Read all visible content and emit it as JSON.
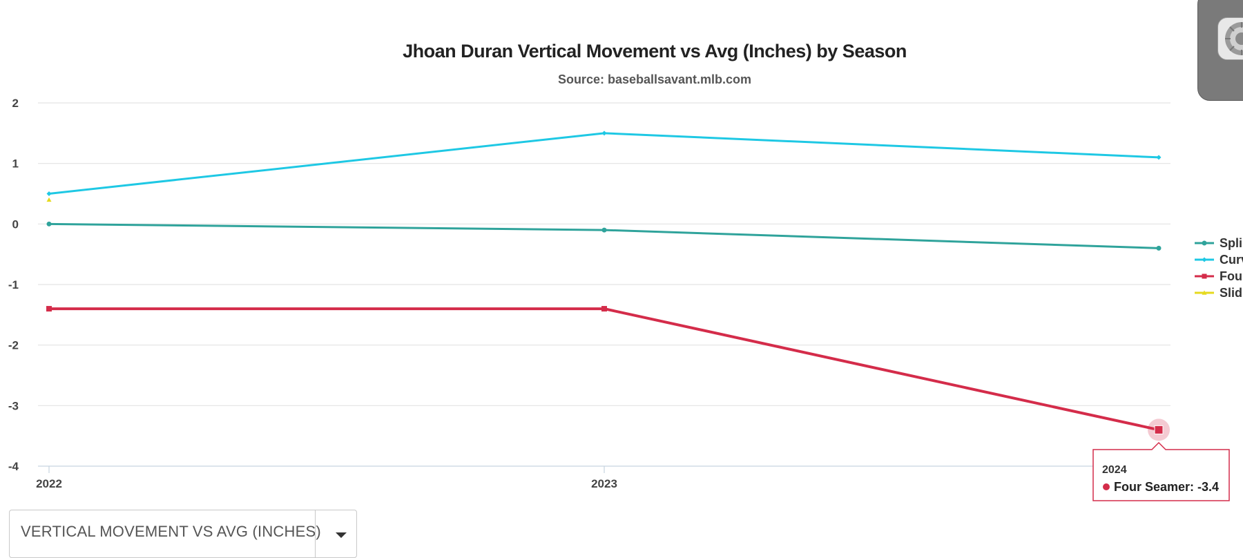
{
  "chart_data": {
    "type": "line",
    "title": "Jhoan Duran Vertical Movement vs Avg (Inches) by Season",
    "subtitle": "Source: baseballsavant.mlb.com",
    "x": [
      "2022",
      "2023",
      "2024"
    ],
    "ylim": [
      -4,
      2
    ],
    "yticks": [
      2,
      1,
      0,
      -1,
      -2,
      -3,
      -4
    ],
    "grid": true,
    "legend_position": "right",
    "series": [
      {
        "name": "Splitter",
        "legend_label": "Spli",
        "values": [
          0.0,
          -0.1,
          -0.4
        ],
        "color": "#2fa39b",
        "marker": "circle"
      },
      {
        "name": "Curveball",
        "legend_label": "Curv",
        "values": [
          0.5,
          1.5,
          1.1
        ],
        "color": "#1ec8e4",
        "marker": "diamond"
      },
      {
        "name": "Four Seamer",
        "legend_label": "Four",
        "values": [
          -1.4,
          -1.4,
          -3.4
        ],
        "color": "#d42c4a",
        "marker": "square"
      },
      {
        "name": "Slider",
        "legend_label": "Slid",
        "values": [
          0.4,
          null,
          null
        ],
        "color": "#e6da1e",
        "marker": "triangle"
      }
    ],
    "tooltip": {
      "year": "2024",
      "text": "Four Seamer: -3.4",
      "series_index": 2,
      "point_index": 2
    }
  },
  "dropdown": {
    "label": "VERTICAL MOVEMENT VS AVG (INCHES)"
  }
}
